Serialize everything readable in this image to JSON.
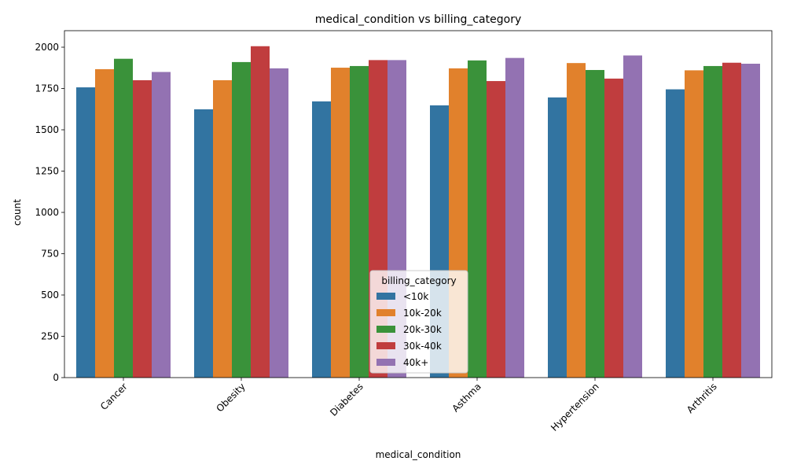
{
  "chart_data": {
    "type": "bar",
    "title": "medical_condition vs billing_category",
    "xlabel": "medical_condition",
    "ylabel": "count",
    "ylim": [
      0,
      2100
    ],
    "yticks": [
      0,
      250,
      500,
      750,
      1000,
      1250,
      1500,
      1750,
      2000
    ],
    "categories": [
      "Cancer",
      "Obesity",
      "Diabetes",
      "Asthma",
      "Hypertension",
      "Arthritis"
    ],
    "legend": {
      "title": "billing_category",
      "placement": "lower center"
    },
    "grid": false,
    "series": [
      {
        "name": "<10k",
        "color": "#3274a1",
        "values": [
          1757,
          1624,
          1672,
          1648,
          1696,
          1745
        ]
      },
      {
        "name": "10k-20k",
        "color": "#e1812c",
        "values": [
          1867,
          1800,
          1876,
          1872,
          1904,
          1860
        ]
      },
      {
        "name": "20k-30k",
        "color": "#3a923a",
        "values": [
          1930,
          1910,
          1886,
          1920,
          1862,
          1886
        ]
      },
      {
        "name": "30k-40k",
        "color": "#c03d3e",
        "values": [
          1800,
          2006,
          1922,
          1795,
          1810,
          1906
        ]
      },
      {
        "name": "40k+",
        "color": "#9372b2",
        "values": [
          1850,
          1872,
          1922,
          1935,
          1950,
          1900
        ]
      }
    ]
  }
}
